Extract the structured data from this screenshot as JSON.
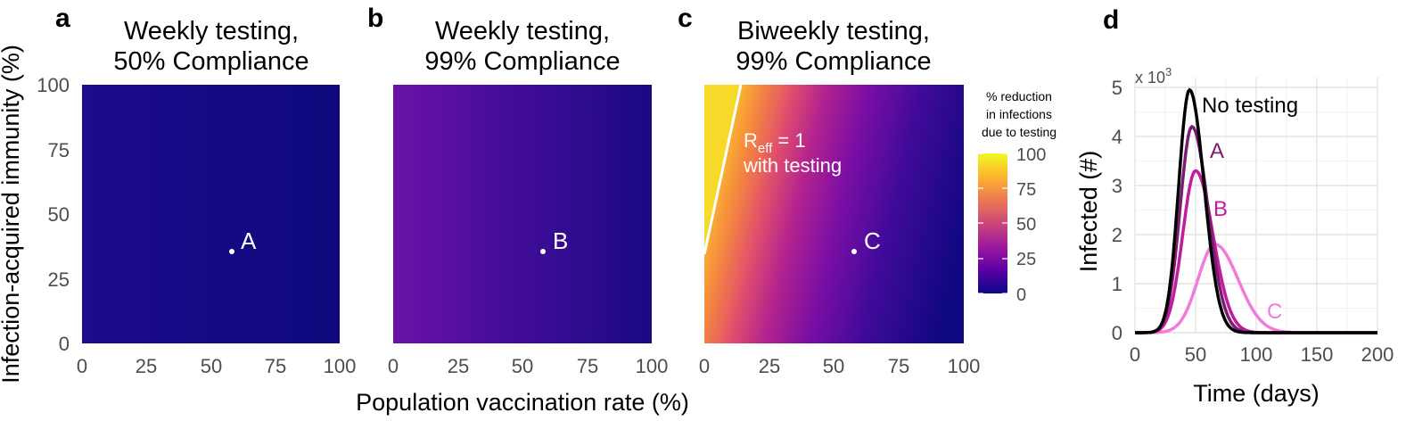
{
  "chart_data": [
    {
      "type": "heatmap",
      "panel": "a",
      "title_line1": "Weekly testing,",
      "title_line2": "50% Compliance",
      "xlabel": "Population vaccination rate (%)",
      "ylabel": "Infection-acquired immunity (%)",
      "xlim": [
        0,
        100
      ],
      "ylim": [
        0,
        100
      ],
      "x_ticks": [
        "0",
        "25",
        "50",
        "75",
        "100"
      ],
      "y_ticks": [
        "0",
        "25",
        "50",
        "75",
        "100"
      ],
      "value": "% reduction in infections due to testing",
      "approx_values": {
        "at_x0": 8,
        "at_x100": 2
      },
      "point": {
        "label": "A",
        "x": 58,
        "y": 35
      }
    },
    {
      "type": "heatmap",
      "panel": "b",
      "title_line1": "Weekly testing,",
      "title_line2": "99% Compliance",
      "xlim": [
        0,
        100
      ],
      "ylim": [
        0,
        100
      ],
      "x_ticks": [
        "0",
        "25",
        "50",
        "75",
        "100"
      ],
      "approx_values": {
        "at_x0": 28,
        "at_x100": 8
      },
      "point": {
        "label": "B",
        "x": 58,
        "y": 35
      }
    },
    {
      "type": "heatmap",
      "panel": "c",
      "title_line1": "Biweekly testing,",
      "title_line2": "99% Compliance",
      "xlim": [
        0,
        100
      ],
      "ylim": [
        0,
        100
      ],
      "x_ticks": [
        "0",
        "25",
        "50",
        "75",
        "100"
      ],
      "point": {
        "label": "C",
        "x": 58,
        "y": 35
      },
      "reff_line": {
        "x_at_y35": 0,
        "x_at_y100": 14
      },
      "annotation_main": "R",
      "annotation_sub": "eff",
      "annotation_rest": " = 1",
      "annotation_line2": "with testing",
      "legend": {
        "title_lines": [
          "% reduction",
          "in infections",
          "due to testing"
        ],
        "ticks": [
          "0",
          "25",
          "50",
          "75",
          "100"
        ],
        "colors": [
          "#0d0887",
          "#5c01a6",
          "#9c179e",
          "#cc4778",
          "#ed7953",
          "#fdb32f",
          "#f0f921"
        ]
      }
    },
    {
      "type": "line",
      "panel": "d",
      "xlabel": "Time (days)",
      "ylabel": "Infected (#)",
      "multiplier_label": "x 10",
      "multiplier_exp": "3",
      "xlim": [
        0,
        200
      ],
      "ylim": [
        0,
        5
      ],
      "x_ticks": [
        "0",
        "50",
        "100",
        "150",
        "200"
      ],
      "y_ticks": [
        "0",
        "1",
        "2",
        "3",
        "4",
        "5"
      ],
      "series": [
        {
          "name": "No testing",
          "color": "#000000",
          "peak_x": 45,
          "peak_y": 4.95,
          "sd": 10.5
        },
        {
          "name": "A",
          "color": "#7a1c70",
          "peak_x": 47,
          "peak_y": 4.2,
          "sd": 11.5
        },
        {
          "name": "B",
          "color": "#c21c9e",
          "peak_x": 50,
          "peak_y": 3.3,
          "sd": 12.5
        },
        {
          "name": "C",
          "color": "#f27ad8",
          "peak_x": 66,
          "peak_y": 1.8,
          "sd": 16.5
        }
      ]
    }
  ]
}
